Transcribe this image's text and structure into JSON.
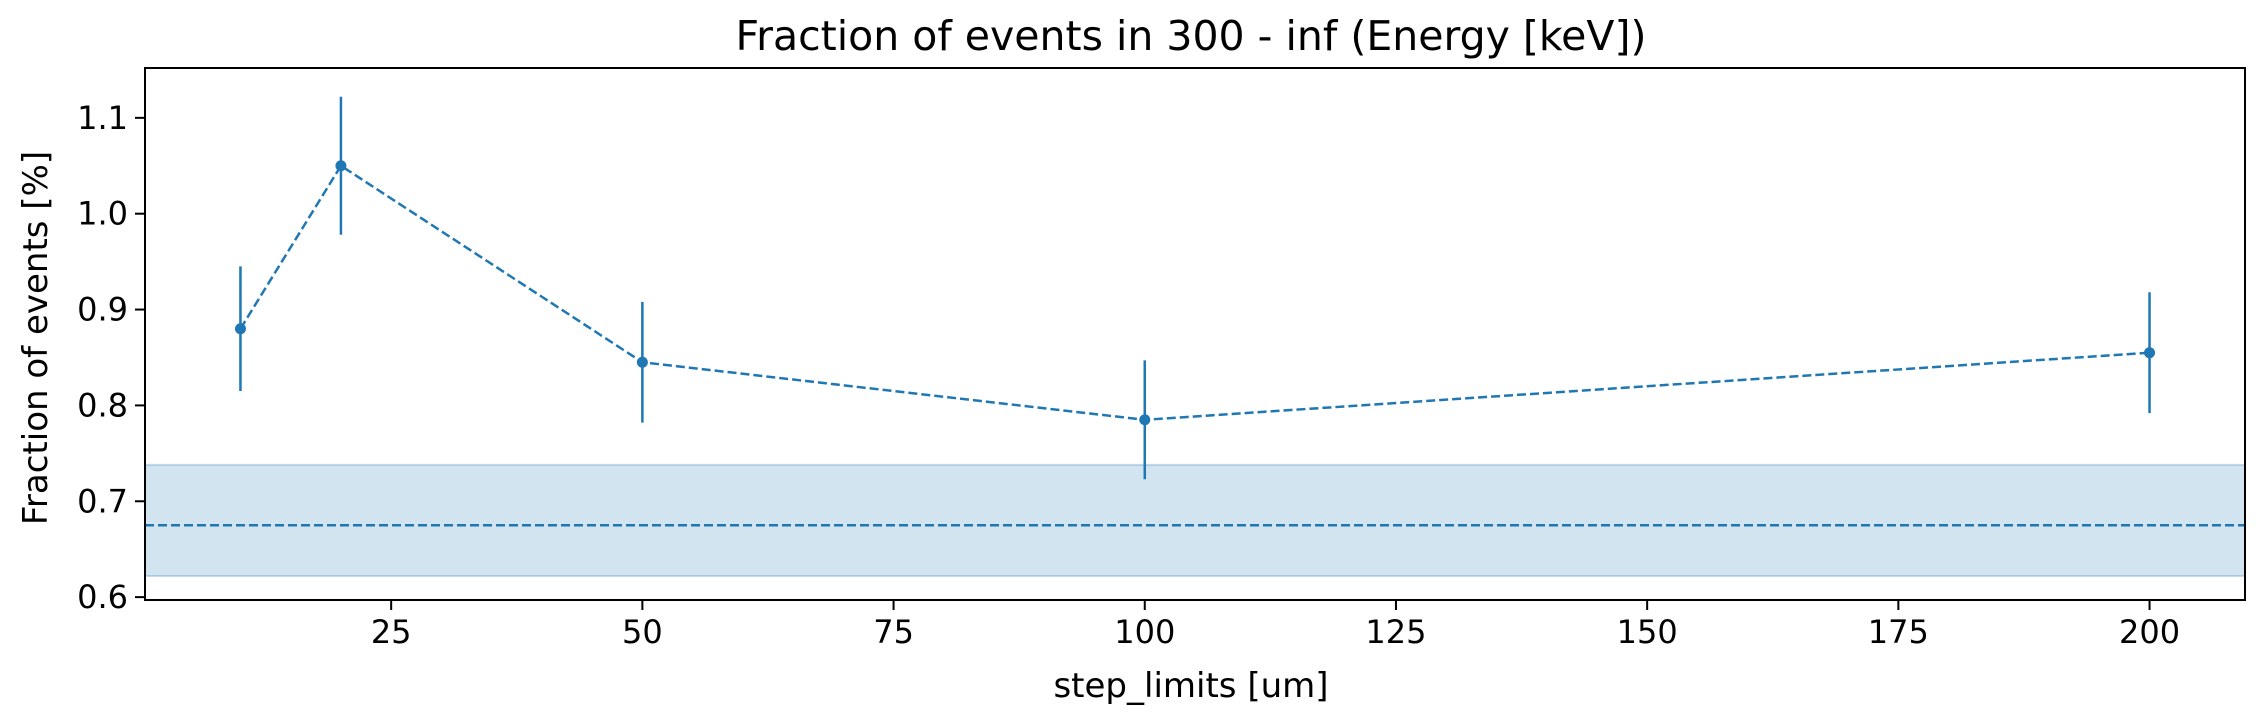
{
  "chart_data": {
    "type": "line",
    "title": "Fraction of events in 300 - inf (Energy [keV])",
    "xlabel": "step_limits [um]",
    "ylabel": "Fraction of events [%]",
    "xlim": [
      0.5,
      209.5
    ],
    "ylim": [
      0.597,
      1.152
    ],
    "xticks": [
      25,
      50,
      75,
      100,
      125,
      150,
      175,
      200
    ],
    "yticks": [
      0.6,
      0.7,
      0.8,
      0.9,
      1.0,
      1.1
    ],
    "xtick_labels": [
      "25",
      "50",
      "75",
      "100",
      "125",
      "150",
      "175",
      "200"
    ],
    "ytick_labels": [
      "0.6",
      "0.7",
      "0.8",
      "0.9",
      "1.0",
      "1.1"
    ],
    "grid": false,
    "series": [
      {
        "x": [
          10,
          20,
          50,
          100,
          200
        ],
        "y": [
          0.88,
          1.05,
          0.845,
          0.785,
          0.855
        ],
        "yerr": [
          0.065,
          0.072,
          0.063,
          0.062,
          0.063
        ],
        "color": "#1f77b4",
        "linestyle": "dashed",
        "marker": "circle"
      }
    ],
    "reference": {
      "value": 0.675,
      "band": [
        0.622,
        0.738
      ],
      "color": "#1f77b4",
      "band_color": "#1f77b4",
      "band_opacity": 0.2
    }
  }
}
